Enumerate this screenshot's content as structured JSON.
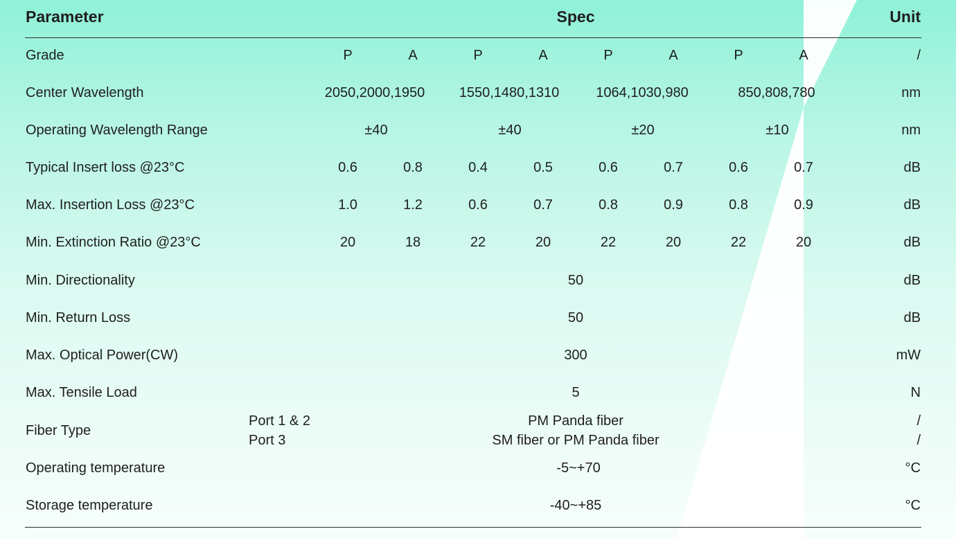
{
  "header": {
    "parameter": "Parameter",
    "spec": "Spec",
    "unit": "Unit"
  },
  "rows": {
    "grade": {
      "label": "Grade",
      "values": [
        "P",
        "A",
        "P",
        "A",
        "P",
        "A",
        "P",
        "A"
      ],
      "unit": "/"
    },
    "center_wavelength": {
      "label": "Center Wavelength",
      "values": [
        "2050,2000,1950",
        "1550,1480,1310",
        "1064,1030,980",
        "850,808,780"
      ],
      "unit": "nm"
    },
    "operating_range": {
      "label": "Operating Wavelength Range",
      "values": [
        "±40",
        "±40",
        "±20",
        "±10"
      ],
      "unit": "nm"
    },
    "typical_insert_loss": {
      "label": "Typical Insert loss @23°C",
      "values": [
        "0.6",
        "0.8",
        "0.4",
        "0.5",
        "0.6",
        "0.7",
        "0.6",
        "0.7"
      ],
      "unit": "dB"
    },
    "max_insertion_loss": {
      "label": "Max. Insertion Loss @23°C",
      "values": [
        "1.0",
        "1.2",
        "0.6",
        "0.7",
        "0.8",
        "0.9",
        "0.8",
        "0.9"
      ],
      "unit": "dB"
    },
    "min_extinction_ratio": {
      "label": "Min. Extinction Ratio @23°C",
      "values": [
        "20",
        "18",
        "22",
        "20",
        "22",
        "20",
        "22",
        "20"
      ],
      "unit": "dB"
    },
    "min_directionality": {
      "label": "Min. Directionality",
      "value": "50",
      "unit": "dB"
    },
    "min_return_loss": {
      "label": "Min. Return Loss",
      "value": "50",
      "unit": "dB"
    },
    "max_optical_power": {
      "label": "Max. Optical Power(CW)",
      "value": "300",
      "unit": "mW"
    },
    "max_tensile_load": {
      "label": "Max. Tensile Load",
      "value": "5",
      "unit": "N"
    },
    "fiber_type": {
      "label": "Fiber Type",
      "port_a": "Port 1 & 2",
      "value_a": "PM Panda fiber",
      "unit_a": "/",
      "port_b": "Port 3",
      "value_b": "SM fiber or PM Panda fiber",
      "unit_b": "/"
    },
    "operating_temperature": {
      "label": "Operating temperature",
      "value": "-5~+70",
      "unit": "°C"
    },
    "storage_temperature": {
      "label": "Storage temperature",
      "value": "-40~+85",
      "unit": "°C"
    }
  },
  "colors": {
    "background_top": "#8ff2d8",
    "background_bottom": "#f6fefb",
    "stripe": "#ffffff",
    "text": "#1e1e1e"
  }
}
